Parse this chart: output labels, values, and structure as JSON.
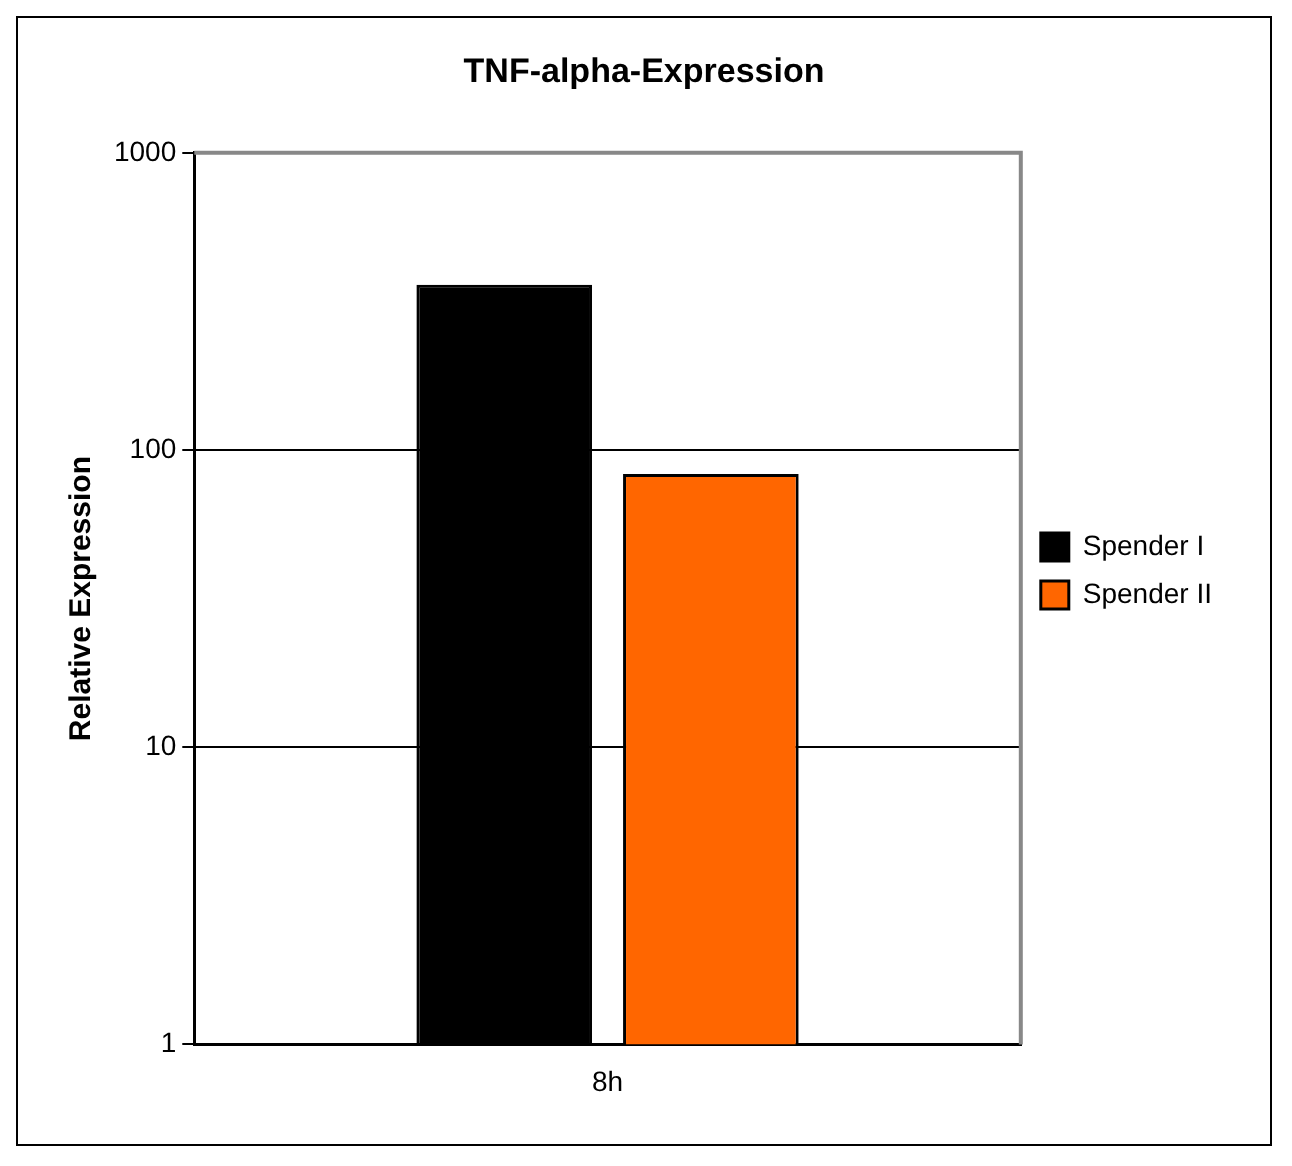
{
  "chart_data": {
    "type": "bar",
    "title": "TNF-alpha-Expression",
    "ylabel": "Relative Expression",
    "categories": [
      "8h"
    ],
    "series": [
      {
        "name": "Spender I",
        "color": "#000000",
        "values": [
          360
        ]
      },
      {
        "name": "Spender II",
        "color": "#ff6600",
        "values": [
          83
        ]
      }
    ],
    "log": true,
    "ylim": [
      1,
      1000
    ],
    "yticks": [
      1,
      10,
      100,
      1000
    ],
    "grid": "y",
    "legend": "right"
  }
}
